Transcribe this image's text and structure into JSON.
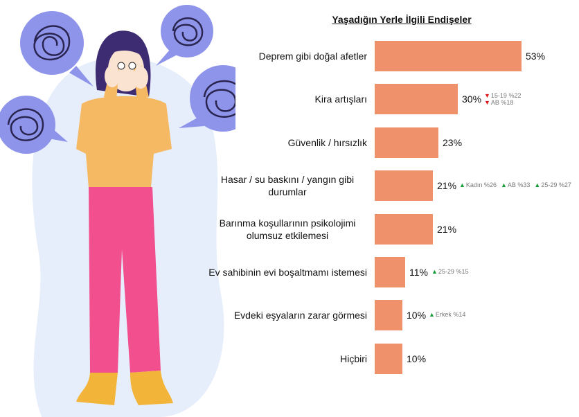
{
  "chart_data": {
    "type": "bar",
    "orientation": "horizontal",
    "title": "Yaşadığın Yerle İlgili Endişeler",
    "categories": [
      "Deprem gibi doğal afetler",
      "Kira artışları",
      "Güvenlik / hırsızlık",
      "Hasar / su baskını / yangın gibi durumlar",
      "Barınma koşullarının psikolojimi olumsuz etkilemesi",
      "Ev sahibinin evi boşaltmamı istemesi",
      "Evdeki eşyaların zarar görmesi",
      "Hiçbiri"
    ],
    "values": [
      53,
      30,
      23,
      21,
      21,
      11,
      10,
      10
    ],
    "value_labels": [
      "53%",
      "30%",
      "23%",
      "21%",
      "21%",
      "11%",
      "10%",
      "10%"
    ],
    "color": "#ef916b",
    "xlim": [
      0,
      60
    ],
    "annotations": [
      [],
      [
        {
          "text": "15-19 %22",
          "trend": "down"
        },
        {
          "text": "AB %18",
          "trend": "down"
        }
      ],
      [],
      [
        {
          "text": "Kadın %26",
          "trend": "up"
        },
        {
          "text": "AB %33",
          "trend": "up"
        },
        {
          "text": "25-29 %27",
          "trend": "up"
        }
      ],
      [],
      [
        {
          "text": "25-29 %15",
          "trend": "up"
        }
      ],
      [
        {
          "text": "Erkek %14",
          "trend": "up"
        }
      ],
      []
    ],
    "trend_colors": {
      "up": "#1a9e3a",
      "down": "#e0191e"
    }
  }
}
